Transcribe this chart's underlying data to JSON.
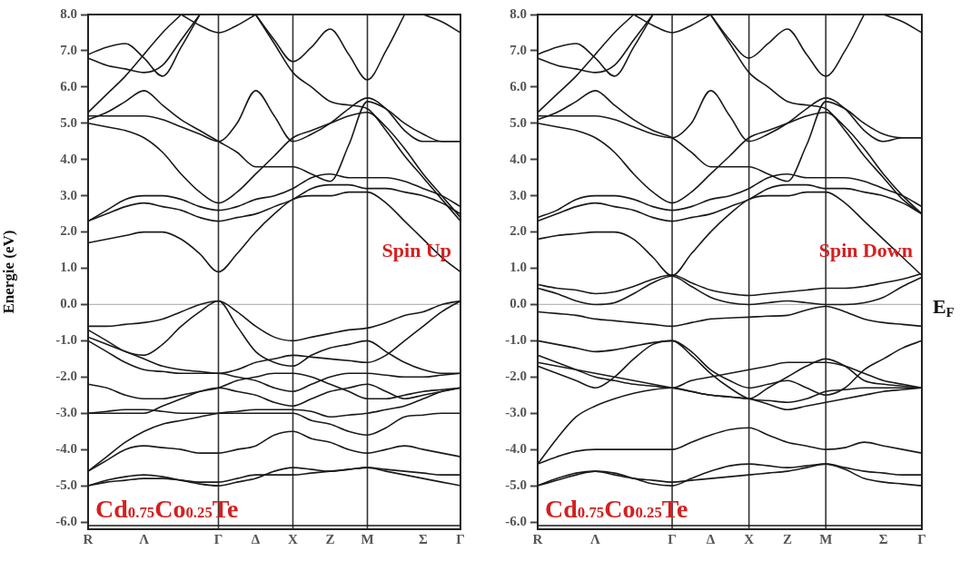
{
  "chart_data": [
    {
      "type": "line",
      "ylabel": "Energie (eV)",
      "annotations": [
        "Spin Up",
        "Cd$_{0.75}$Co$_{0.25}$Te"
      ],
      "categories": [
        "R",
        null,
        null,
        "Λ",
        null,
        null,
        null,
        "Γ",
        null,
        "Δ",
        null,
        "X",
        null,
        "Z",
        null,
        "M",
        null,
        null,
        "Σ",
        null,
        "Γ"
      ],
      "ylim": [
        -6.2,
        8
      ],
      "yticks": [
        {
          "value": -6,
          "label": "-6.0"
        },
        {
          "value": -5,
          "label": "-5.0"
        },
        {
          "value": -4,
          "label": "-4.0"
        },
        {
          "value": -3,
          "label": "-3.0"
        },
        {
          "value": -2,
          "label": "-2.0"
        },
        {
          "value": -1,
          "label": "-1.0"
        },
        {
          "value": 0,
          "label": "0.0"
        },
        {
          "value": 1,
          "label": "1.0"
        },
        {
          "value": 2,
          "label": "2.0"
        },
        {
          "value": 3,
          "label": "3.0"
        },
        {
          "value": 4,
          "label": "4.0"
        },
        {
          "value": 5,
          "label": "5.0"
        },
        {
          "value": 6,
          "label": "6.0"
        },
        {
          "value": 7,
          "label": "7.0"
        },
        {
          "value": 8,
          "label": "8.0"
        }
      ],
      "grid": false,
      "legend": false,
      "ref_lines": [
        {
          "axis": "y",
          "value": 0,
          "color": "#b8b8b8"
        },
        {
          "axis": "x",
          "value": "Γ",
          "color": "#333333"
        },
        {
          "axis": "x",
          "value": "X",
          "color": "#333333"
        },
        {
          "axis": "x",
          "value": "M",
          "color": "#333333"
        }
      ],
      "series": [
        {
          "color": "#1a1a1a",
          "values": [
            1.7,
            1.8,
            1.9,
            2.0,
            2.0,
            1.8,
            1.4,
            0.9,
            1.4,
            2.0,
            2.5,
            2.9,
            3.0,
            3.0,
            3.1,
            3.1,
            2.8,
            2.3,
            1.8,
            1.3,
            0.9
          ]
        },
        {
          "color": "#1a1a1a",
          "values": [
            2.3,
            2.5,
            2.7,
            2.8,
            2.7,
            2.6,
            2.4,
            2.3,
            2.4,
            2.5,
            2.7,
            2.9,
            3.2,
            3.3,
            3.3,
            3.2,
            3.2,
            3.1,
            3.0,
            2.8,
            2.5
          ]
        },
        {
          "color": "#1a1a1a",
          "values": [
            2.3,
            2.6,
            2.9,
            3.0,
            3.0,
            2.9,
            2.7,
            2.6,
            2.7,
            2.9,
            3.0,
            3.2,
            3.5,
            3.6,
            3.5,
            3.5,
            3.5,
            3.4,
            3.2,
            3.0,
            2.7
          ]
        },
        {
          "color": "#1a1a1a",
          "values": [
            5.0,
            4.9,
            4.8,
            4.6,
            4.2,
            3.6,
            3.1,
            2.8,
            3.1,
            3.6,
            4.1,
            4.6,
            4.8,
            5.0,
            5.2,
            5.3,
            4.9,
            4.3,
            3.6,
            3.0,
            2.4
          ]
        },
        {
          "color": "#1a1a1a",
          "values": [
            5.1,
            5.3,
            5.6,
            5.9,
            5.5,
            5.1,
            4.8,
            4.5,
            4.2,
            3.8,
            3.8,
            3.8,
            3.6,
            3.4,
            4.4,
            5.6,
            5.4,
            5.0,
            4.7,
            4.5,
            4.5
          ]
        },
        {
          "color": "#1a1a1a",
          "values": [
            5.2,
            5.2,
            5.2,
            5.2,
            5.1,
            4.9,
            4.7,
            4.5,
            5.0,
            5.9,
            5.2,
            4.5,
            4.7,
            5.0,
            5.4,
            5.7,
            5.4,
            4.8,
            4.5,
            4.5,
            4.5
          ]
        },
        {
          "color": "#1a1a1a",
          "values": [
            5.3,
            5.8,
            6.3,
            6.9,
            7.5,
            8.0,
            null,
            null,
            null,
            null,
            null,
            null,
            null,
            null,
            null,
            null,
            null,
            null,
            null,
            null,
            null
          ]
        },
        {
          "color": "#1a1a1a",
          "values": [
            6.9,
            7.1,
            7.2,
            6.8,
            6.3,
            7.1,
            8.0,
            null,
            null,
            null,
            null,
            null,
            null,
            null,
            null,
            null,
            null,
            null,
            null,
            null,
            null
          ]
        },
        {
          "color": "#1a1a1a",
          "values": [
            6.8,
            6.6,
            6.5,
            6.4,
            6.6,
            7.3,
            8.0,
            null,
            null,
            null,
            null,
            null,
            null,
            null,
            null,
            null,
            null,
            null,
            null,
            null,
            null
          ]
        },
        {
          "color": "#1a1a1a",
          "values": [
            null,
            null,
            null,
            null,
            null,
            8.0,
            7.7,
            7.5,
            7.7,
            8.0,
            null,
            null,
            null,
            null,
            null,
            null,
            null,
            null,
            null,
            null,
            null
          ]
        },
        {
          "color": "#1a1a1a",
          "values": [
            null,
            null,
            null,
            null,
            null,
            null,
            null,
            null,
            null,
            8.0,
            7.3,
            6.7,
            7.1,
            7.6,
            6.9,
            6.2,
            7.0,
            8.0,
            null,
            null,
            null
          ]
        },
        {
          "color": "#1a1a1a",
          "values": [
            null,
            null,
            null,
            null,
            null,
            null,
            null,
            null,
            null,
            8.0,
            7.2,
            6.4,
            6.0,
            5.6,
            5.5,
            5.4,
            4.8,
            4.1,
            3.5,
            2.9,
            2.3
          ]
        },
        {
          "color": "#1a1a1a",
          "values": [
            null,
            null,
            null,
            null,
            null,
            null,
            null,
            null,
            null,
            null,
            null,
            null,
            null,
            null,
            null,
            null,
            null,
            null,
            8.0,
            7.8,
            7.5
          ]
        },
        {
          "color": "#1a1a1a",
          "values": [
            -0.6,
            -0.6,
            -0.55,
            -0.5,
            -0.4,
            -0.2,
            0.0,
            0.1,
            -0.2,
            -0.6,
            -0.9,
            -1.0,
            -0.9,
            -0.8,
            -0.7,
            -0.65,
            -0.5,
            -0.3,
            -0.2,
            0.0,
            0.1
          ]
        },
        {
          "color": "#1a1a1a",
          "values": [
            -0.7,
            -1.0,
            -1.3,
            -1.4,
            -1.1,
            -0.6,
            -0.2,
            0.1,
            -0.6,
            -1.3,
            -1.6,
            -1.7,
            -1.4,
            -1.2,
            -1.1,
            -1.0,
            -1.3,
            -1.6,
            -1.8,
            -1.9,
            -1.9
          ]
        },
        {
          "color": "#1a1a1a",
          "values": [
            -0.9,
            -1.1,
            -1.3,
            -1.5,
            -1.7,
            -1.8,
            -1.85,
            -1.9,
            -1.8,
            -1.6,
            -1.5,
            -1.4,
            -1.45,
            -1.5,
            -1.55,
            -1.6,
            -1.4,
            -1.0,
            -0.6,
            -0.2,
            0.1
          ]
        },
        {
          "color": "#1a1a1a",
          "values": [
            -1.0,
            -1.3,
            -1.6,
            -1.8,
            -1.85,
            -1.9,
            -1.9,
            -1.9,
            -2.0,
            -2.1,
            -2.3,
            -2.4,
            -2.2,
            -2.0,
            -1.9,
            -1.9,
            -1.95,
            -2.0,
            -2.0,
            -1.95,
            -1.9
          ]
        },
        {
          "color": "#1a1a1a",
          "values": [
            -2.2,
            -2.3,
            -2.5,
            -2.6,
            -2.6,
            -2.5,
            -2.4,
            -2.3,
            -2.1,
            -2.0,
            -1.9,
            -1.9,
            -2.0,
            -2.2,
            -2.4,
            -2.6,
            -2.6,
            -2.5,
            -2.4,
            -2.35,
            -2.3
          ]
        },
        {
          "color": "#1a1a1a",
          "values": [
            -3.0,
            -3.0,
            -3.0,
            -3.0,
            -2.8,
            -2.6,
            -2.4,
            -2.3,
            -2.4,
            -2.5,
            -2.7,
            -2.8,
            -2.6,
            -2.4,
            -2.3,
            -2.2,
            -2.4,
            -2.6,
            -2.5,
            -2.4,
            -2.3
          ]
        },
        {
          "color": "#1a1a1a",
          "values": [
            -3.0,
            -2.95,
            -2.9,
            -2.9,
            -2.95,
            -3.0,
            -3.0,
            -3.0,
            -3.0,
            -3.0,
            -3.0,
            -3.0,
            -3.2,
            -3.3,
            -3.5,
            -3.6,
            -3.4,
            -3.1,
            -3.05,
            -3.0,
            -3.0
          ]
        },
        {
          "color": "#1a1a1a",
          "values": [
            -4.6,
            -4.2,
            -3.8,
            -3.5,
            -3.3,
            -3.2,
            -3.1,
            -3.0,
            -2.95,
            -2.9,
            -2.9,
            -2.9,
            -2.95,
            -3.1,
            -3.05,
            -3.0,
            -2.9,
            -2.8,
            -2.6,
            -2.4,
            -2.3
          ]
        },
        {
          "color": "#1a1a1a",
          "values": [
            -4.6,
            -4.3,
            -4.0,
            -3.9,
            -3.95,
            -4.0,
            -4.1,
            -4.1,
            -4.0,
            -3.9,
            -3.6,
            -3.5,
            -3.7,
            -3.8,
            -4.0,
            -4.1,
            -4.0,
            -3.9,
            -4.0,
            -4.1,
            -4.2
          ]
        },
        {
          "color": "#1a1a1a",
          "values": [
            -5.0,
            -4.85,
            -4.75,
            -4.7,
            -4.75,
            -4.85,
            -4.95,
            -5.0,
            -4.9,
            -4.8,
            -4.6,
            -4.5,
            -4.55,
            -4.6,
            -4.55,
            -4.5,
            -4.6,
            -4.7,
            -4.8,
            -4.9,
            -5.0
          ]
        },
        {
          "color": "#1a1a1a",
          "values": [
            -5.0,
            -4.9,
            -4.85,
            -4.8,
            -4.8,
            -4.85,
            -4.9,
            -4.9,
            -4.8,
            -4.7,
            -4.7,
            -4.7,
            -4.65,
            -4.6,
            -4.55,
            -4.5,
            -4.55,
            -4.6,
            -4.65,
            -4.7,
            -4.7
          ]
        },
        {
          "color": "#1a1a1a",
          "values": [
            -6.1,
            -6.1,
            -6.1,
            -6.1,
            -6.1,
            -6.1,
            -6.1,
            -6.1,
            -6.1,
            -6.1,
            -6.1,
            -6.1,
            -6.1,
            -6.1,
            -6.1,
            -6.1,
            -6.1,
            -6.1,
            -6.1,
            -6.1,
            -6.1
          ]
        }
      ]
    },
    {
      "type": "line",
      "annotations": [
        "Spin Down",
        "Cd$_{0.75}$Co$_{0.25}$Te"
      ],
      "categories": [
        "R",
        null,
        null,
        "Λ",
        null,
        null,
        null,
        "Γ",
        null,
        "Δ",
        null,
        "X",
        null,
        "Z",
        null,
        "M",
        null,
        null,
        "Σ",
        null,
        "Γ"
      ],
      "ylim": [
        -6.2,
        8
      ],
      "yticks": [
        {
          "value": -6,
          "label": "-6.0"
        },
        {
          "value": -5,
          "label": "-5.0"
        },
        {
          "value": -4,
          "label": "-4.0"
        },
        {
          "value": -3,
          "label": "-3.0"
        },
        {
          "value": -2,
          "label": "-2.0"
        },
        {
          "value": -1,
          "label": "-1.0"
        },
        {
          "value": 0,
          "label": "0.0"
        },
        {
          "value": 1,
          "label": "1.0"
        },
        {
          "value": 2,
          "label": "2.0"
        },
        {
          "value": 3,
          "label": "3.0"
        },
        {
          "value": 4,
          "label": "4.0"
        },
        {
          "value": 5,
          "label": "5.0"
        },
        {
          "value": 6,
          "label": "6.0"
        },
        {
          "value": 7,
          "label": "7.0"
        },
        {
          "value": 8,
          "label": "8.0"
        }
      ],
      "grid": false,
      "legend": false,
      "ref_lines": [
        {
          "axis": "y",
          "value": 0,
          "label": "E$_{F}$",
          "color": "#b8b8b8"
        },
        {
          "axis": "x",
          "value": "Γ",
          "color": "#333333"
        },
        {
          "axis": "x",
          "value": "X",
          "color": "#333333"
        },
        {
          "axis": "x",
          "value": "M",
          "color": "#333333"
        }
      ],
      "series": [
        {
          "color": "#1a1a1a",
          "values": [
            1.8,
            1.9,
            1.95,
            2.0,
            2.0,
            1.8,
            1.3,
            0.8,
            1.4,
            2.0,
            2.5,
            2.9,
            3.0,
            3.0,
            3.1,
            3.1,
            2.8,
            2.3,
            1.8,
            1.3,
            0.8
          ]
        },
        {
          "color": "#1a1a1a",
          "values": [
            2.3,
            2.5,
            2.7,
            2.8,
            2.7,
            2.6,
            2.4,
            2.3,
            2.4,
            2.5,
            2.7,
            2.9,
            3.2,
            3.3,
            3.3,
            3.2,
            3.2,
            3.1,
            3.0,
            2.8,
            2.5
          ]
        },
        {
          "color": "#1a1a1a",
          "values": [
            2.4,
            2.6,
            2.9,
            3.0,
            3.0,
            2.9,
            2.7,
            2.6,
            2.7,
            2.9,
            3.0,
            3.2,
            3.5,
            3.6,
            3.5,
            3.5,
            3.5,
            3.4,
            3.2,
            3.0,
            2.7
          ]
        },
        {
          "color": "#1a1a1a",
          "values": [
            5.0,
            4.9,
            4.8,
            4.6,
            4.2,
            3.6,
            3.1,
            2.8,
            3.1,
            3.6,
            4.1,
            4.6,
            4.8,
            5.0,
            5.2,
            5.3,
            4.9,
            4.3,
            3.6,
            3.0,
            2.5
          ]
        },
        {
          "color": "#1a1a1a",
          "values": [
            5.1,
            5.3,
            5.6,
            5.9,
            5.5,
            5.1,
            4.8,
            4.6,
            4.2,
            3.8,
            3.8,
            3.8,
            3.6,
            3.4,
            4.4,
            5.6,
            5.4,
            5.0,
            4.7,
            4.6,
            4.6
          ]
        },
        {
          "color": "#1a1a1a",
          "values": [
            5.2,
            5.2,
            5.2,
            5.2,
            5.1,
            4.9,
            4.7,
            4.6,
            5.0,
            5.9,
            5.2,
            4.5,
            4.7,
            5.0,
            5.4,
            5.7,
            5.4,
            4.8,
            4.5,
            4.6,
            4.6
          ]
        },
        {
          "color": "#1a1a1a",
          "values": [
            5.3,
            5.8,
            6.3,
            6.9,
            7.5,
            8.0,
            null,
            null,
            null,
            null,
            null,
            null,
            null,
            null,
            null,
            null,
            null,
            null,
            null,
            null,
            null
          ]
        },
        {
          "color": "#1a1a1a",
          "values": [
            6.9,
            7.1,
            7.2,
            6.8,
            6.3,
            7.1,
            8.0,
            null,
            null,
            null,
            null,
            null,
            null,
            null,
            null,
            null,
            null,
            null,
            null,
            null,
            null
          ]
        },
        {
          "color": "#1a1a1a",
          "values": [
            6.8,
            6.6,
            6.5,
            6.4,
            6.6,
            7.3,
            8.0,
            null,
            null,
            null,
            null,
            null,
            null,
            null,
            null,
            null,
            null,
            null,
            null,
            null,
            null
          ]
        },
        {
          "color": "#1a1a1a",
          "values": [
            null,
            null,
            null,
            null,
            null,
            8.0,
            7.7,
            7.5,
            7.7,
            8.0,
            null,
            null,
            null,
            null,
            null,
            null,
            null,
            null,
            null,
            null,
            null
          ]
        },
        {
          "color": "#1a1a1a",
          "values": [
            null,
            null,
            null,
            null,
            null,
            null,
            null,
            null,
            null,
            8.0,
            7.3,
            6.8,
            7.2,
            7.6,
            6.9,
            6.3,
            7.0,
            8.0,
            null,
            null,
            null
          ]
        },
        {
          "color": "#1a1a1a",
          "values": [
            null,
            null,
            null,
            null,
            null,
            null,
            null,
            null,
            null,
            8.0,
            7.2,
            6.4,
            6.0,
            5.6,
            5.5,
            5.4,
            4.8,
            4.1,
            3.5,
            2.9,
            2.5
          ]
        },
        {
          "color": "#1a1a1a",
          "values": [
            null,
            null,
            null,
            null,
            null,
            null,
            null,
            null,
            null,
            null,
            null,
            null,
            null,
            null,
            null,
            null,
            null,
            null,
            8.0,
            7.8,
            7.5
          ]
        },
        {
          "color": "#1a1a1a",
          "values": [
            0.55,
            0.45,
            0.4,
            0.3,
            0.35,
            0.5,
            0.7,
            0.82,
            0.6,
            0.4,
            0.3,
            0.25,
            0.3,
            0.35,
            0.4,
            0.45,
            0.45,
            0.5,
            0.6,
            0.7,
            0.85
          ]
        },
        {
          "color": "#1a1a1a",
          "values": [
            0.45,
            0.3,
            0.1,
            0.0,
            0.05,
            0.3,
            0.6,
            0.78,
            0.5,
            0.2,
            0.05,
            0.0,
            0.05,
            0.1,
            0.05,
            0.0,
            0.0,
            0.05,
            0.2,
            0.5,
            0.75
          ]
        },
        {
          "color": "#1a1a1a",
          "values": [
            -0.2,
            -0.25,
            -0.3,
            -0.4,
            -0.45,
            -0.5,
            -0.55,
            -0.6,
            -0.5,
            -0.4,
            -0.37,
            -0.35,
            -0.32,
            -0.3,
            -0.15,
            -0.05,
            -0.2,
            -0.4,
            -0.5,
            -0.55,
            -0.6
          ]
        },
        {
          "color": "#1a1a1a",
          "values": [
            -1.0,
            -1.1,
            -1.2,
            -1.3,
            -1.25,
            -1.15,
            -1.05,
            -1.0,
            -1.3,
            -1.8,
            -2.1,
            -2.3,
            -2.2,
            -2.1,
            -2.3,
            -2.5,
            -2.3,
            -1.8,
            -1.5,
            -1.2,
            -1.0
          ]
        },
        {
          "color": "#1a1a1a",
          "values": [
            -1.4,
            -1.6,
            -1.8,
            -2.0,
            -2.1,
            -2.2,
            -2.25,
            -2.3,
            -2.1,
            -2.0,
            -1.9,
            -1.8,
            -1.7,
            -1.6,
            -1.6,
            -1.6,
            -1.7,
            -1.9,
            -2.1,
            -2.2,
            -2.3
          ]
        },
        {
          "color": "#1a1a1a",
          "values": [
            -1.6,
            -1.7,
            -1.8,
            -1.9,
            -2.0,
            -2.1,
            -2.2,
            -2.3,
            -2.4,
            -2.5,
            -2.55,
            -2.6,
            -2.3,
            -2.0,
            -1.7,
            -1.5,
            -1.7,
            -2.1,
            -2.2,
            -2.25,
            -2.3
          ]
        },
        {
          "color": "#1a1a1a",
          "values": [
            -1.7,
            -1.9,
            -2.1,
            -2.3,
            -2.0,
            -1.5,
            -1.1,
            -1.0,
            -1.4,
            -1.9,
            -2.3,
            -2.6,
            -2.65,
            -2.7,
            -2.6,
            -2.4,
            -2.35,
            -2.3,
            -2.3,
            -2.3,
            -2.3
          ]
        },
        {
          "color": "#1a1a1a",
          "values": [
            -4.4,
            -3.7,
            -3.1,
            -2.8,
            -2.6,
            -2.45,
            -2.35,
            -2.3,
            -2.4,
            -2.5,
            -2.55,
            -2.6,
            -2.75,
            -2.9,
            -2.8,
            -2.7,
            -2.6,
            -2.5,
            -2.4,
            -2.35,
            -2.3
          ]
        },
        {
          "color": "#1a1a1a",
          "values": [
            -4.4,
            -4.2,
            -4.05,
            -4.0,
            -4.0,
            -4.0,
            -4.0,
            -4.0,
            -3.8,
            -3.6,
            -3.45,
            -3.4,
            -3.6,
            -3.8,
            -3.9,
            -4.0,
            -3.95,
            -3.8,
            -3.9,
            -4.0,
            -4.1
          ]
        },
        {
          "color": "#1a1a1a",
          "values": [
            -5.0,
            -4.8,
            -4.65,
            -4.6,
            -4.65,
            -4.8,
            -4.95,
            -5.0,
            -4.8,
            -4.6,
            -4.45,
            -4.4,
            -4.45,
            -4.5,
            -4.45,
            -4.4,
            -4.55,
            -4.8,
            -4.9,
            -4.95,
            -5.0
          ]
        },
        {
          "color": "#1a1a1a",
          "values": [
            -5.0,
            -4.85,
            -4.7,
            -4.6,
            -4.7,
            -4.8,
            -4.85,
            -4.9,
            -4.85,
            -4.8,
            -4.75,
            -4.7,
            -4.65,
            -4.6,
            -4.5,
            -4.4,
            -4.5,
            -4.6,
            -4.65,
            -4.7,
            -4.7
          ]
        },
        {
          "color": "#1a1a1a",
          "values": [
            -6.1,
            -6.1,
            -6.1,
            -6.1,
            -6.1,
            -6.1,
            -6.1,
            -6.1,
            -6.1,
            -6.1,
            -6.1,
            -6.1,
            -6.1,
            -6.1,
            -6.1,
            -6.1,
            -6.1,
            -6.1,
            -6.1,
            -6.1,
            -6.1
          ]
        }
      ]
    }
  ]
}
